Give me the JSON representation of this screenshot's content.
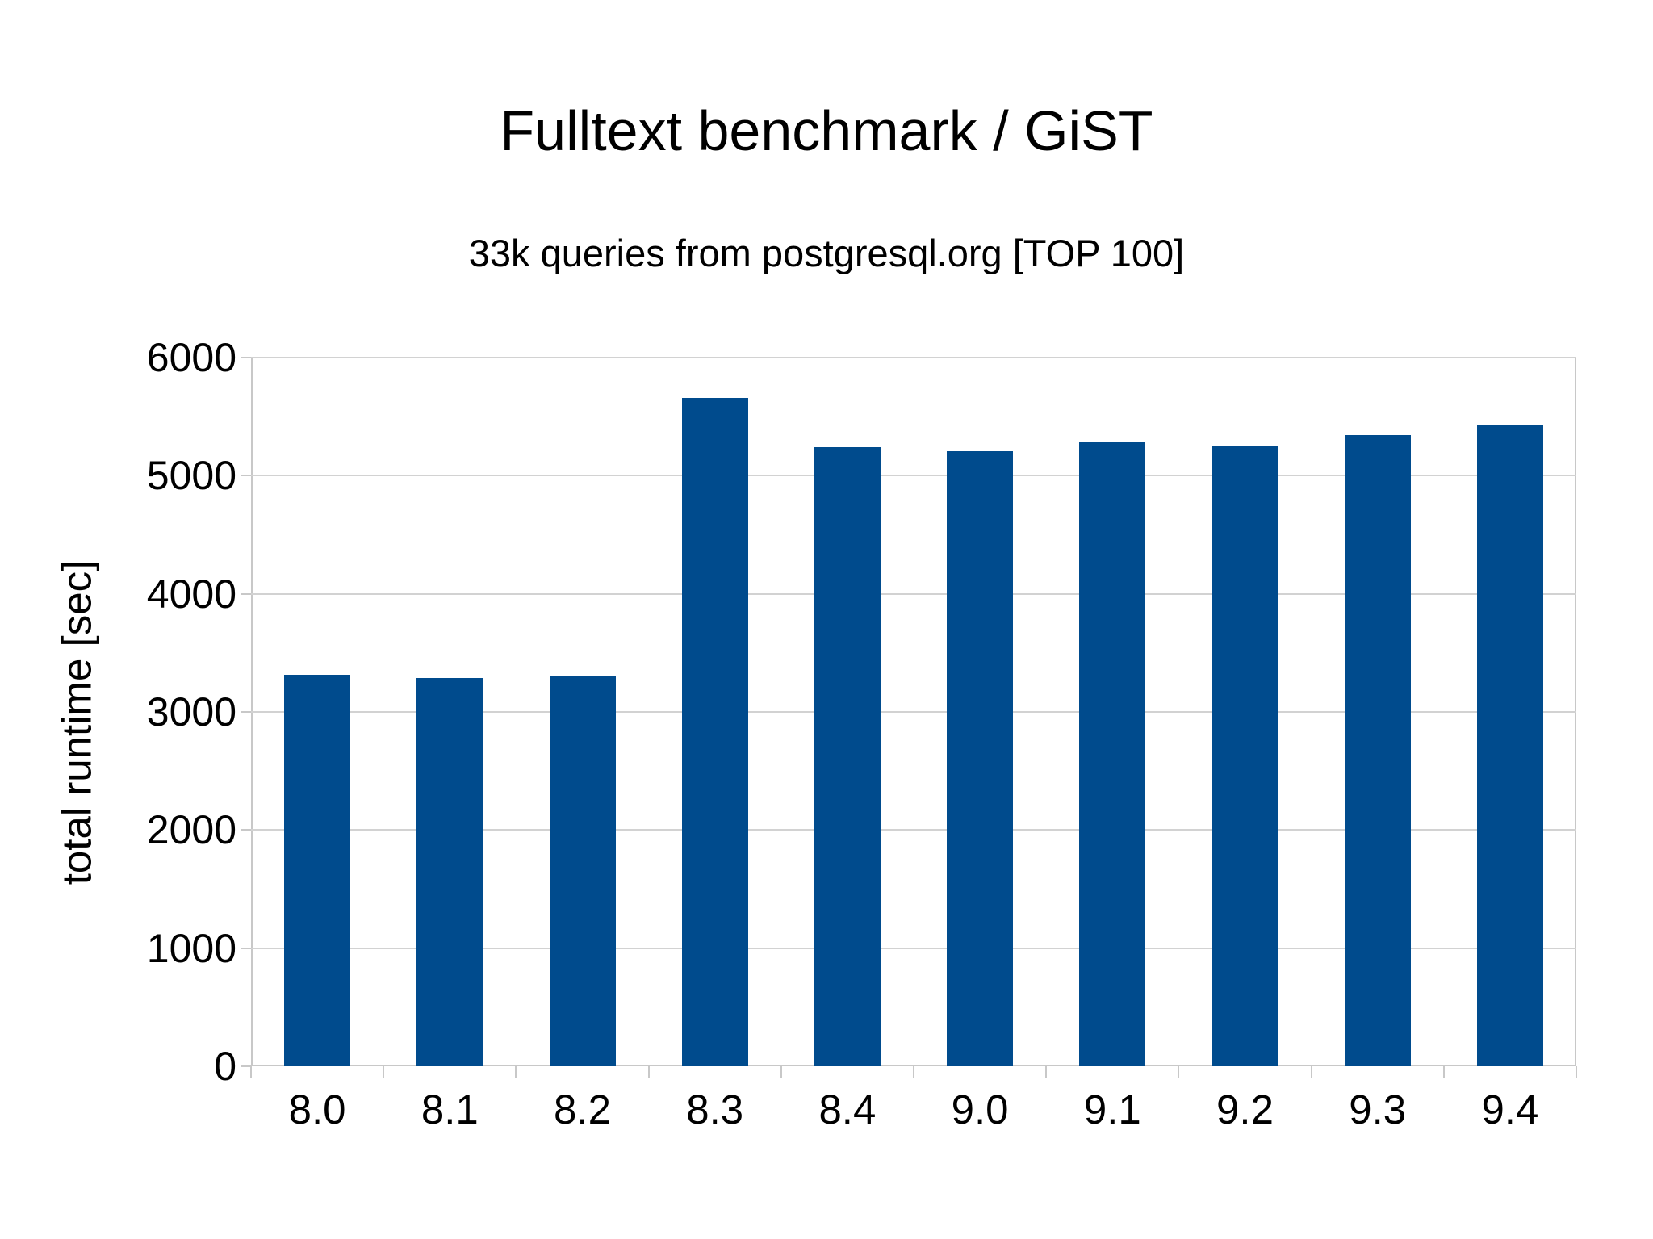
{
  "chart_data": {
    "type": "bar",
    "title": "Fulltext benchmark / GiST",
    "subtitle": "33k queries from postgresql.org [TOP 100]",
    "ylabel": "total runtime [sec]",
    "xlabel": "",
    "categories": [
      "8.0",
      "8.1",
      "8.2",
      "8.3",
      "8.4",
      "9.0",
      "9.1",
      "9.2",
      "9.3",
      "9.4"
    ],
    "values": [
      3315,
      3285,
      3310,
      5660,
      5240,
      5210,
      5285,
      5245,
      5345,
      5430
    ],
    "ylim": [
      0,
      6000
    ],
    "ytick_step": 1000,
    "yticks": [
      0,
      1000,
      2000,
      3000,
      4000,
      5000,
      6000
    ],
    "grid": true,
    "legend": "none",
    "bar_color": "#004b8d",
    "gridline_color": "#d2d2d2",
    "axis_color": "#c8c8c8",
    "text_color": "#000000"
  }
}
